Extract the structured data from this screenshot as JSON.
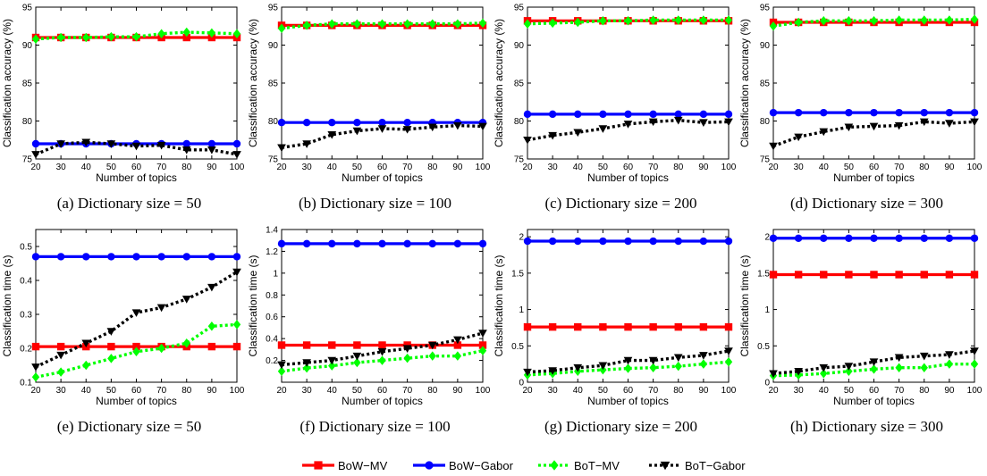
{
  "chart_data": [
    {
      "type": "line",
      "caption": "(a) Dictionary size = 50",
      "xlabel": "Number of topics",
      "ylabel": "Classification accuracy (%)",
      "x": [
        20,
        30,
        40,
        50,
        60,
        70,
        80,
        90,
        100
      ],
      "xlim": [
        20,
        100
      ],
      "ylim": [
        75,
        95
      ],
      "yticks": [
        75,
        80,
        85,
        90,
        95
      ],
      "grid": false,
      "legend": "shared-bottom",
      "series": [
        {
          "name": "BoW−MV",
          "values": [
            91,
            91,
            91,
            91,
            91,
            91,
            91,
            91,
            91
          ]
        },
        {
          "name": "BoW−Gabor",
          "values": [
            77,
            77,
            77,
            77,
            77,
            77,
            77,
            77,
            77
          ]
        },
        {
          "name": "BoT−MV",
          "values": [
            90.8,
            91.0,
            91.0,
            91.1,
            91.1,
            91.5,
            91.7,
            91.6,
            91.5
          ]
        },
        {
          "name": "BoT−Gabor",
          "values": [
            75.6,
            77.0,
            77.2,
            77.0,
            76.7,
            76.8,
            76.2,
            76.2,
            75.6
          ]
        }
      ]
    },
    {
      "type": "line",
      "caption": "(b) Dictionary size = 100",
      "xlabel": "Number of topics",
      "ylabel": "Classification accuracy (%)",
      "x": [
        20,
        30,
        40,
        50,
        60,
        70,
        80,
        90,
        100
      ],
      "xlim": [
        20,
        100
      ],
      "ylim": [
        75,
        95
      ],
      "yticks": [
        75,
        80,
        85,
        90,
        95
      ],
      "grid": false,
      "legend": "shared-bottom",
      "series": [
        {
          "name": "BoW−MV",
          "values": [
            92.6,
            92.6,
            92.6,
            92.6,
            92.6,
            92.6,
            92.6,
            92.6,
            92.6
          ]
        },
        {
          "name": "BoW−Gabor",
          "values": [
            79.8,
            79.8,
            79.8,
            79.8,
            79.8,
            79.8,
            79.8,
            79.8,
            79.8
          ]
        },
        {
          "name": "BoT−MV",
          "values": [
            92.2,
            92.6,
            92.8,
            92.8,
            92.8,
            92.8,
            92.8,
            92.8,
            92.9
          ]
        },
        {
          "name": "BoT−Gabor",
          "values": [
            76.5,
            77.0,
            78.2,
            78.7,
            79.0,
            78.9,
            79.2,
            79.4,
            79.3
          ]
        }
      ]
    },
    {
      "type": "line",
      "caption": "(c) Dictionary size = 200",
      "xlabel": "Number of topics",
      "ylabel": "Classification accuracy (%)",
      "x": [
        20,
        30,
        40,
        50,
        60,
        70,
        80,
        90,
        100
      ],
      "xlim": [
        20,
        100
      ],
      "ylim": [
        75,
        95
      ],
      "yticks": [
        75,
        80,
        85,
        90,
        95
      ],
      "grid": false,
      "legend": "shared-bottom",
      "series": [
        {
          "name": "BoW−MV",
          "values": [
            93.2,
            93.2,
            93.2,
            93.2,
            93.2,
            93.2,
            93.2,
            93.2,
            93.2
          ]
        },
        {
          "name": "BoW−Gabor",
          "values": [
            80.9,
            80.9,
            80.9,
            80.9,
            80.9,
            80.9,
            80.9,
            80.9,
            80.9
          ]
        },
        {
          "name": "BoT−MV",
          "values": [
            92.8,
            92.9,
            93.0,
            93.2,
            93.2,
            93.3,
            93.3,
            93.3,
            93.3
          ]
        },
        {
          "name": "BoT−Gabor",
          "values": [
            77.5,
            78.1,
            78.5,
            79.0,
            79.6,
            79.9,
            80.1,
            79.8,
            79.9
          ]
        }
      ]
    },
    {
      "type": "line",
      "caption": "(d) Dictionary size = 300",
      "xlabel": "Number of topics",
      "ylabel": "Classification accuracy (%)",
      "x": [
        20,
        30,
        40,
        50,
        60,
        70,
        80,
        90,
        100
      ],
      "xlim": [
        20,
        100
      ],
      "ylim": [
        75,
        95
      ],
      "yticks": [
        75,
        80,
        85,
        90,
        95
      ],
      "grid": false,
      "legend": "shared-bottom",
      "series": [
        {
          "name": "BoW−MV",
          "values": [
            93.0,
            93.0,
            93.0,
            93.0,
            93.0,
            93.0,
            93.0,
            93.0,
            93.0
          ]
        },
        {
          "name": "BoW−Gabor",
          "values": [
            81.1,
            81.1,
            81.1,
            81.1,
            81.1,
            81.1,
            81.1,
            81.1,
            81.1
          ]
        },
        {
          "name": "BoT−MV",
          "values": [
            92.5,
            93.0,
            93.2,
            93.2,
            93.2,
            93.3,
            93.3,
            93.3,
            93.4
          ]
        },
        {
          "name": "BoT−Gabor",
          "values": [
            76.7,
            77.9,
            78.6,
            79.2,
            79.3,
            79.4,
            79.9,
            79.7,
            79.9
          ]
        }
      ]
    },
    {
      "type": "line",
      "caption": "(e) Dictionary size = 50",
      "xlabel": "Number of topics",
      "ylabel": "Classification time (s)",
      "x": [
        20,
        30,
        40,
        50,
        60,
        70,
        80,
        90,
        100
      ],
      "xlim": [
        20,
        100
      ],
      "ylim": [
        0.1,
        0.55
      ],
      "yticks": [
        0.1,
        0.2,
        0.3,
        0.4,
        0.5
      ],
      "grid": false,
      "legend": "shared-bottom",
      "series": [
        {
          "name": "BoW−MV",
          "values": [
            0.205,
            0.205,
            0.205,
            0.205,
            0.205,
            0.205,
            0.205,
            0.205,
            0.205
          ]
        },
        {
          "name": "BoW−Gabor",
          "values": [
            0.47,
            0.47,
            0.47,
            0.47,
            0.47,
            0.47,
            0.47,
            0.47,
            0.47
          ]
        },
        {
          "name": "BoT−MV",
          "values": [
            0.115,
            0.13,
            0.15,
            0.17,
            0.19,
            0.2,
            0.215,
            0.265,
            0.27
          ]
        },
        {
          "name": "BoT−Gabor",
          "values": [
            0.145,
            0.18,
            0.215,
            0.25,
            0.305,
            0.32,
            0.345,
            0.38,
            0.425
          ]
        }
      ]
    },
    {
      "type": "line",
      "caption": "(f) Dictionary size = 100",
      "xlabel": "Number of topics",
      "ylabel": "Classification time (s)",
      "x": [
        20,
        30,
        40,
        50,
        60,
        70,
        80,
        90,
        100
      ],
      "xlim": [
        20,
        100
      ],
      "ylim": [
        0,
        1.4
      ],
      "yticks": [
        0.2,
        0.4,
        0.6,
        0.8,
        1,
        1.2,
        1.4
      ],
      "grid": false,
      "legend": "shared-bottom",
      "series": [
        {
          "name": "BoW−MV",
          "values": [
            0.34,
            0.34,
            0.34,
            0.34,
            0.34,
            0.34,
            0.34,
            0.34,
            0.34
          ]
        },
        {
          "name": "BoW−Gabor",
          "values": [
            1.27,
            1.27,
            1.27,
            1.27,
            1.27,
            1.27,
            1.27,
            1.27,
            1.27
          ]
        },
        {
          "name": "BoT−MV",
          "values": [
            0.1,
            0.13,
            0.15,
            0.18,
            0.2,
            0.22,
            0.24,
            0.24,
            0.29
          ]
        },
        {
          "name": "BoT−Gabor",
          "values": [
            0.16,
            0.18,
            0.2,
            0.24,
            0.28,
            0.31,
            0.34,
            0.39,
            0.45
          ]
        }
      ]
    },
    {
      "type": "line",
      "caption": "(g) Dictionary size = 200",
      "xlabel": "Number of topics",
      "ylabel": "Classification time (s)",
      "x": [
        20,
        30,
        40,
        50,
        60,
        70,
        80,
        90,
        100
      ],
      "xlim": [
        20,
        100
      ],
      "ylim": [
        0,
        2.1
      ],
      "yticks": [
        0,
        0.5,
        1,
        1.5,
        2
      ],
      "grid": false,
      "legend": "shared-bottom",
      "series": [
        {
          "name": "BoW−MV",
          "values": [
            0.76,
            0.76,
            0.76,
            0.76,
            0.76,
            0.76,
            0.76,
            0.76,
            0.76
          ]
        },
        {
          "name": "BoW−Gabor",
          "values": [
            1.94,
            1.94,
            1.94,
            1.94,
            1.94,
            1.94,
            1.94,
            1.94,
            1.94
          ]
        },
        {
          "name": "BoT−MV",
          "values": [
            0.1,
            0.12,
            0.15,
            0.17,
            0.19,
            0.2,
            0.22,
            0.25,
            0.28
          ]
        },
        {
          "name": "BoT−Gabor",
          "values": [
            0.14,
            0.16,
            0.2,
            0.23,
            0.3,
            0.3,
            0.34,
            0.37,
            0.43
          ]
        }
      ]
    },
    {
      "type": "line",
      "caption": "(h) Dictionary size = 300",
      "xlabel": "Number of topics",
      "ylabel": "Classification time (s)",
      "x": [
        20,
        30,
        40,
        50,
        60,
        70,
        80,
        90,
        100
      ],
      "xlim": [
        20,
        100
      ],
      "ylim": [
        0,
        2.1
      ],
      "yticks": [
        0,
        0.5,
        1,
        1.5,
        2
      ],
      "grid": false,
      "legend": "shared-bottom",
      "series": [
        {
          "name": "BoW−MV",
          "values": [
            1.48,
            1.48,
            1.48,
            1.48,
            1.48,
            1.48,
            1.48,
            1.48,
            1.48
          ]
        },
        {
          "name": "BoW−Gabor",
          "values": [
            1.98,
            1.98,
            1.98,
            1.98,
            1.98,
            1.98,
            1.98,
            1.98,
            1.98
          ]
        },
        {
          "name": "BoT−MV",
          "values": [
            0.09,
            0.1,
            0.12,
            0.15,
            0.18,
            0.2,
            0.2,
            0.25,
            0.25
          ]
        },
        {
          "name": "BoT−Gabor",
          "values": [
            0.12,
            0.15,
            0.2,
            0.22,
            0.28,
            0.34,
            0.36,
            0.38,
            0.43
          ]
        }
      ]
    }
  ],
  "legend": {
    "entries": [
      {
        "name": "BoW−MV",
        "color": "#ff0000",
        "line": "solid",
        "marker": "square"
      },
      {
        "name": "BoW−Gabor",
        "color": "#0000ff",
        "line": "solid",
        "marker": "circle"
      },
      {
        "name": "BoT−MV",
        "color": "#00ff00",
        "line": "dotted",
        "marker": "diamond"
      },
      {
        "name": "BoT−Gabor",
        "color": "#000000",
        "line": "dotted",
        "marker": "triangle-down"
      }
    ]
  }
}
